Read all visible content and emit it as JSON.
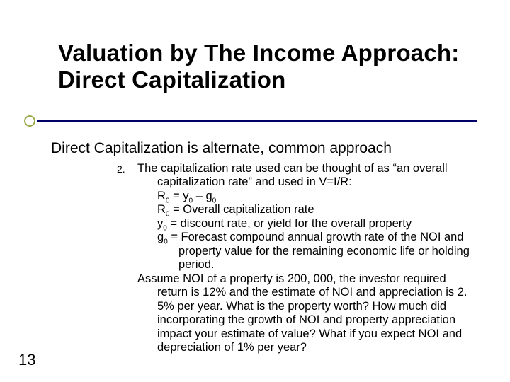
{
  "colors": {
    "background": "#ffffff",
    "text": "#000000",
    "accent_ring": "#9ca84a",
    "rule_bar": "#000066"
  },
  "typography": {
    "title_fontsize": 33,
    "subtitle_fontsize": 21,
    "body_fontsize": 16.5,
    "list_number_fontsize": 14,
    "page_number_fontsize": 22,
    "font_family": "Arial"
  },
  "title": "Valuation by The Income Approach: Direct Capitalization",
  "subtitle": "Direct Capitalization is alternate, common approach",
  "list_number": "2.",
  "body": {
    "lead1": "The capitalization rate used can be thought of as “an overall",
    "lead2": "capitalization rate” and used in V=I/R:",
    "eq1_pre": "R",
    "eq1_sub": "0",
    "eq1_mid": " = y",
    "eq1_sub2": "0",
    "eq1_mid2": " – g",
    "eq1_sub3": "0",
    "eq2_pre": "R",
    "eq2_sub": "0",
    "eq2_rest": " = Overall capitalization rate",
    "eq3_pre": "y",
    "eq3_sub": "0",
    "eq3_rest": " = discount rate, or yield for the overall property",
    "eq4_pre": "g",
    "eq4_sub": "0",
    "eq4_rest": " = Forecast compound annual growth rate of the NOI and property value for the remaining economic life or holding period.",
    "assume": "Assume NOI of a property is 200, 000, the investor required return is 12% and the estimate of NOI and appreciation is 2. 5% per year. What is the property worth? How much did incorporating the growth of NOI and property appreciation impact your estimate of value? What if you expect NOI and depreciation of 1% per year?"
  },
  "page_number": "13"
}
